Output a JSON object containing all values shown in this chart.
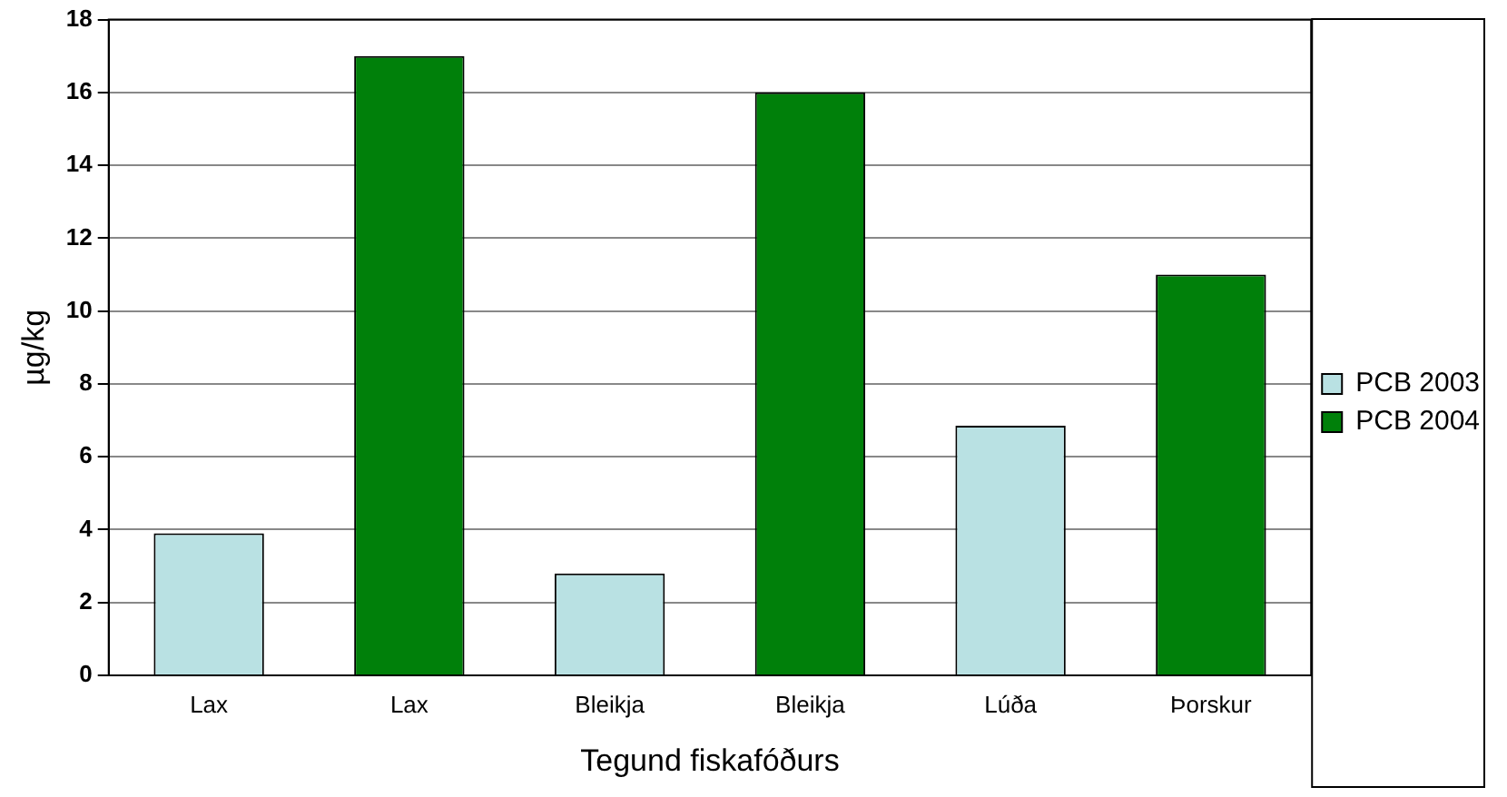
{
  "chart_data": {
    "type": "bar",
    "xlabel": "Tegund fiskafóðurs",
    "ylabel": "µg/kg",
    "categories": [
      "Lax",
      "Lax",
      "Bleikja",
      "Bleikja",
      "Lúða",
      "Þorskur"
    ],
    "series": [
      {
        "name": "PCB 2003",
        "color": "#b9e1e3",
        "values": [
          3.9,
          null,
          2.8,
          null,
          6.85,
          null
        ]
      },
      {
        "name": "PCB 2004",
        "color": "#00800a",
        "values": [
          null,
          17,
          null,
          16,
          null,
          11
        ]
      }
    ],
    "ylim": [
      0,
      18
    ],
    "yticks": [
      0,
      2,
      4,
      6,
      8,
      10,
      12,
      14,
      16,
      18
    ],
    "grid": "y",
    "legend": "right"
  }
}
